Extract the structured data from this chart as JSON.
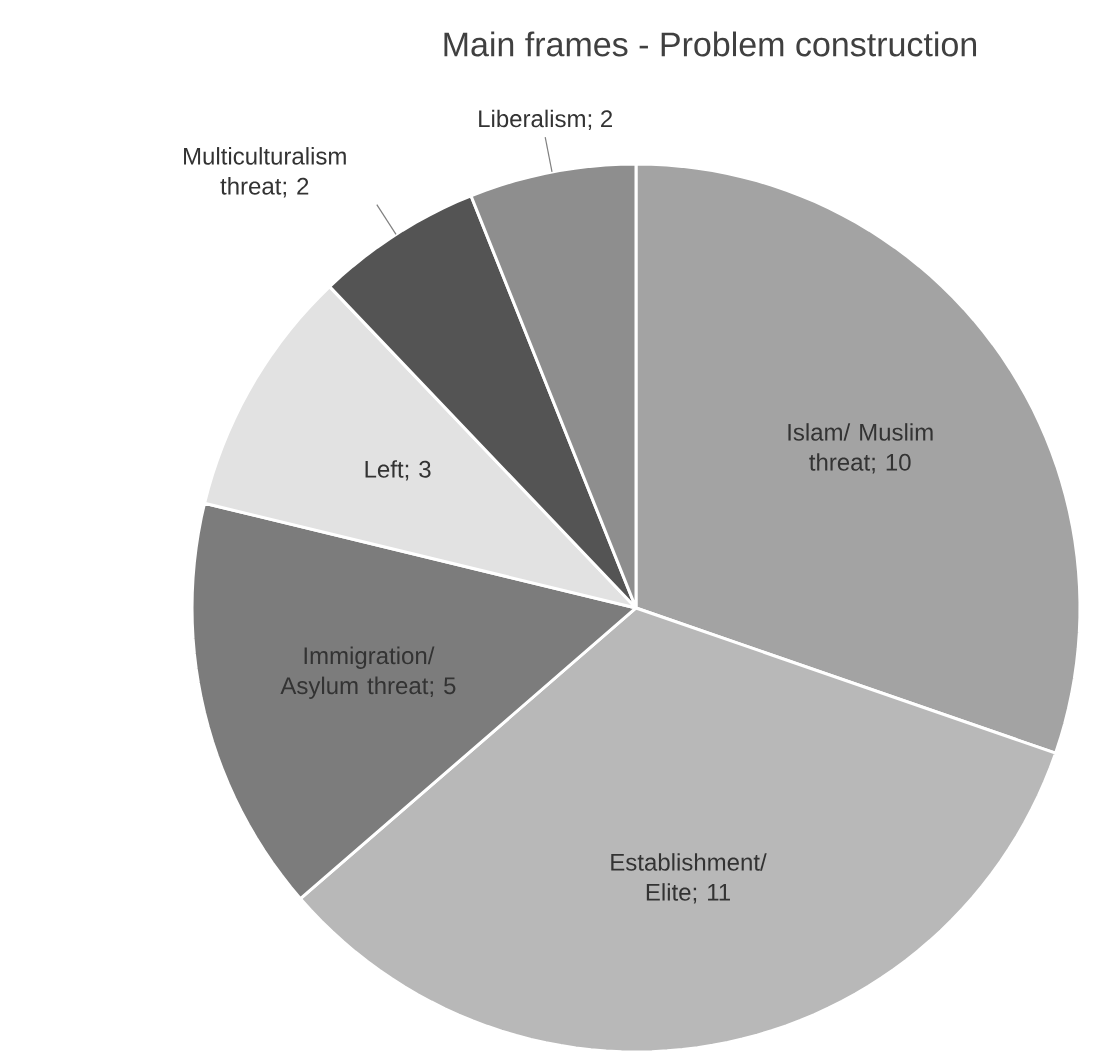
{
  "chart_data": {
    "type": "pie",
    "title": "Main frames - Problem construction",
    "categories": [
      "Islam/ Muslim threat",
      "Establishment/ Elite",
      "Immigration/ Asylum threat",
      "Left",
      "Multiculturalism threat",
      "Liberalism"
    ],
    "values": [
      10,
      11,
      5,
      3,
      2,
      2
    ],
    "value_labels": [
      "; 10",
      "; 11",
      "; 5",
      "; 3",
      "; 2",
      "; 2"
    ],
    "colors": [
      "#a3a3a3",
      "#b8b8b8",
      "#7c7c7c",
      "#e2e2e2",
      "#545454",
      "#8e8e8e"
    ]
  }
}
